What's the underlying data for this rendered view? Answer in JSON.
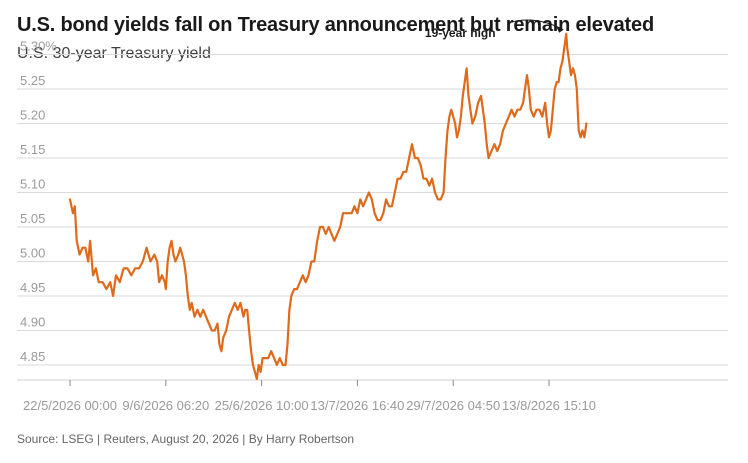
{
  "title": "U.S. bond yields fall on Treasury announcement but remain elevated",
  "subtitle": "U.S. 30-year Treasury yield",
  "source": "Source: LSEG | Reuters, August 20, 2026 | By Harry Robertson",
  "colors": {
    "line": "#e06a1b",
    "grid": "#d9d9d9",
    "axis_text": "#9a9a9a",
    "annotation": "#1a1a1a"
  },
  "chart_data": {
    "type": "line",
    "title": "U.S. 30-year Treasury yield",
    "xlabel": "",
    "ylabel": "",
    "ylim": [
      4.83,
      5.32
    ],
    "grid": true,
    "y_ticks": [
      4.85,
      4.9,
      4.95,
      5.0,
      5.05,
      5.1,
      5.15,
      5.2,
      5.25,
      5.3
    ],
    "y_tick_labels": [
      "4.85",
      "4.90",
      "4.95",
      "5.00",
      "5.05",
      "5.10",
      "5.15",
      "5.20",
      "5.25",
      "5.30%"
    ],
    "x_ticks": [
      0,
      1,
      2,
      3,
      4,
      5
    ],
    "x_tick_labels": [
      "22/5/2026 00:00",
      "9/6/2026 06:20",
      "25/6/2026 10:00",
      "13/7/2026 16:40",
      "29/7/2026 04:50",
      "13/8/2026 15:10"
    ],
    "series": [
      {
        "values": [
          [
            0.0,
            5.09
          ],
          [
            0.03,
            5.07
          ],
          [
            0.05,
            5.08
          ],
          [
            0.07,
            5.03
          ],
          [
            0.1,
            5.01
          ],
          [
            0.13,
            5.02
          ],
          [
            0.16,
            5.02
          ],
          [
            0.19,
            5.0
          ],
          [
            0.21,
            5.03
          ],
          [
            0.24,
            4.98
          ],
          [
            0.27,
            4.99
          ],
          [
            0.3,
            4.97
          ],
          [
            0.34,
            4.97
          ],
          [
            0.38,
            4.96
          ],
          [
            0.42,
            4.97
          ],
          [
            0.45,
            4.95
          ],
          [
            0.48,
            4.98
          ],
          [
            0.52,
            4.97
          ],
          [
            0.56,
            4.99
          ],
          [
            0.6,
            4.99
          ],
          [
            0.64,
            4.98
          ],
          [
            0.68,
            4.99
          ],
          [
            0.72,
            4.99
          ],
          [
            0.76,
            5.0
          ],
          [
            0.8,
            5.02
          ],
          [
            0.84,
            5.0
          ],
          [
            0.88,
            5.01
          ],
          [
            0.91,
            5.0
          ],
          [
            0.93,
            4.97
          ],
          [
            0.96,
            4.98
          ],
          [
            0.99,
            4.97
          ],
          [
            1.0,
            4.96
          ],
          [
            1.02,
            5.0
          ],
          [
            1.04,
            5.02
          ],
          [
            1.06,
            5.03
          ],
          [
            1.08,
            5.01
          ],
          [
            1.1,
            5.0
          ],
          [
            1.13,
            5.01
          ],
          [
            1.15,
            5.02
          ],
          [
            1.17,
            5.01
          ],
          [
            1.19,
            5.0
          ],
          [
            1.21,
            4.98
          ],
          [
            1.23,
            4.95
          ],
          [
            1.25,
            4.93
          ],
          [
            1.27,
            4.94
          ],
          [
            1.3,
            4.92
          ],
          [
            1.33,
            4.93
          ],
          [
            1.36,
            4.92
          ],
          [
            1.39,
            4.93
          ],
          [
            1.42,
            4.92
          ],
          [
            1.45,
            4.91
          ],
          [
            1.48,
            4.9
          ],
          [
            1.51,
            4.9
          ],
          [
            1.54,
            4.91
          ],
          [
            1.56,
            4.88
          ],
          [
            1.58,
            4.87
          ],
          [
            1.6,
            4.89
          ],
          [
            1.63,
            4.9
          ],
          [
            1.66,
            4.92
          ],
          [
            1.69,
            4.93
          ],
          [
            1.72,
            4.94
          ],
          [
            1.75,
            4.93
          ],
          [
            1.78,
            4.94
          ],
          [
            1.81,
            4.92
          ],
          [
            1.83,
            4.93
          ],
          [
            1.85,
            4.93
          ],
          [
            1.87,
            4.9
          ],
          [
            1.89,
            4.87
          ],
          [
            1.91,
            4.85
          ],
          [
            1.93,
            4.84
          ],
          [
            1.95,
            4.83
          ],
          [
            1.97,
            4.85
          ],
          [
            1.99,
            4.84
          ],
          [
            2.01,
            4.86
          ],
          [
            2.04,
            4.86
          ],
          [
            2.07,
            4.86
          ],
          [
            2.1,
            4.87
          ],
          [
            2.13,
            4.86
          ],
          [
            2.16,
            4.85
          ],
          [
            2.19,
            4.86
          ],
          [
            2.22,
            4.85
          ],
          [
            2.25,
            4.85
          ],
          [
            2.27,
            4.88
          ],
          [
            2.29,
            4.93
          ],
          [
            2.31,
            4.95
          ],
          [
            2.34,
            4.96
          ],
          [
            2.37,
            4.96
          ],
          [
            2.4,
            4.97
          ],
          [
            2.43,
            4.98
          ],
          [
            2.46,
            4.97
          ],
          [
            2.49,
            4.98
          ],
          [
            2.52,
            5.0
          ],
          [
            2.55,
            5.0
          ],
          [
            2.58,
            5.03
          ],
          [
            2.61,
            5.05
          ],
          [
            2.64,
            5.05
          ],
          [
            2.67,
            5.04
          ],
          [
            2.7,
            5.05
          ],
          [
            2.73,
            5.04
          ],
          [
            2.76,
            5.03
          ],
          [
            2.79,
            5.04
          ],
          [
            2.82,
            5.05
          ],
          [
            2.85,
            5.07
          ],
          [
            2.88,
            5.07
          ],
          [
            2.91,
            5.07
          ],
          [
            2.94,
            5.07
          ],
          [
            2.97,
            5.08
          ],
          [
            3.0,
            5.07
          ],
          [
            3.03,
            5.09
          ],
          [
            3.06,
            5.08
          ],
          [
            3.09,
            5.09
          ],
          [
            3.12,
            5.1
          ],
          [
            3.15,
            5.09
          ],
          [
            3.18,
            5.07
          ],
          [
            3.21,
            5.06
          ],
          [
            3.24,
            5.06
          ],
          [
            3.27,
            5.07
          ],
          [
            3.3,
            5.09
          ],
          [
            3.33,
            5.08
          ],
          [
            3.36,
            5.08
          ],
          [
            3.39,
            5.1
          ],
          [
            3.42,
            5.12
          ],
          [
            3.45,
            5.12
          ],
          [
            3.48,
            5.13
          ],
          [
            3.51,
            5.13
          ],
          [
            3.54,
            5.15
          ],
          [
            3.57,
            5.17
          ],
          [
            3.6,
            5.15
          ],
          [
            3.63,
            5.15
          ],
          [
            3.66,
            5.14
          ],
          [
            3.69,
            5.12
          ],
          [
            3.72,
            5.12
          ],
          [
            3.75,
            5.11
          ],
          [
            3.78,
            5.12
          ],
          [
            3.81,
            5.1
          ],
          [
            3.84,
            5.09
          ],
          [
            3.87,
            5.09
          ],
          [
            3.9,
            5.1
          ],
          [
            3.92,
            5.15
          ],
          [
            3.94,
            5.19
          ],
          [
            3.96,
            5.21
          ],
          [
            3.98,
            5.22
          ],
          [
            4.0,
            5.21
          ],
          [
            4.02,
            5.2
          ],
          [
            4.04,
            5.18
          ],
          [
            4.06,
            5.19
          ],
          [
            4.08,
            5.21
          ],
          [
            4.1,
            5.24
          ],
          [
            4.12,
            5.26
          ],
          [
            4.14,
            5.28
          ],
          [
            4.16,
            5.24
          ],
          [
            4.18,
            5.22
          ],
          [
            4.2,
            5.2
          ],
          [
            4.23,
            5.21
          ],
          [
            4.26,
            5.23
          ],
          [
            4.29,
            5.24
          ],
          [
            4.31,
            5.22
          ],
          [
            4.33,
            5.2
          ],
          [
            4.35,
            5.17
          ],
          [
            4.37,
            5.15
          ],
          [
            4.4,
            5.16
          ],
          [
            4.43,
            5.17
          ],
          [
            4.46,
            5.16
          ],
          [
            4.49,
            5.17
          ],
          [
            4.52,
            5.19
          ],
          [
            4.55,
            5.2
          ],
          [
            4.58,
            5.21
          ],
          [
            4.61,
            5.22
          ],
          [
            4.64,
            5.21
          ],
          [
            4.67,
            5.22
          ],
          [
            4.7,
            5.22
          ],
          [
            4.73,
            5.23
          ],
          [
            4.75,
            5.25
          ],
          [
            4.77,
            5.27
          ],
          [
            4.79,
            5.25
          ],
          [
            4.81,
            5.22
          ],
          [
            4.84,
            5.21
          ],
          [
            4.87,
            5.22
          ],
          [
            4.9,
            5.22
          ],
          [
            4.93,
            5.21
          ],
          [
            4.96,
            5.23
          ],
          [
            4.98,
            5.2
          ],
          [
            5.0,
            5.18
          ],
          [
            5.02,
            5.19
          ],
          [
            5.04,
            5.22
          ],
          [
            5.06,
            5.25
          ],
          [
            5.08,
            5.26
          ],
          [
            5.1,
            5.26
          ],
          [
            5.12,
            5.28
          ],
          [
            5.14,
            5.29
          ],
          [
            5.16,
            5.31
          ],
          [
            5.17,
            5.32
          ],
          [
            5.18,
            5.33
          ],
          [
            5.19,
            5.31
          ],
          [
            5.21,
            5.29
          ],
          [
            5.23,
            5.27
          ],
          [
            5.25,
            5.28
          ],
          [
            5.27,
            5.27
          ],
          [
            5.29,
            5.25
          ],
          [
            5.3,
            5.22
          ],
          [
            5.31,
            5.19
          ],
          [
            5.33,
            5.18
          ],
          [
            5.35,
            5.19
          ],
          [
            5.37,
            5.18
          ],
          [
            5.39,
            5.2
          ]
        ]
      }
    ],
    "annotations": [
      {
        "text": "19-year high",
        "x": 5.18,
        "y": 5.33
      }
    ]
  }
}
